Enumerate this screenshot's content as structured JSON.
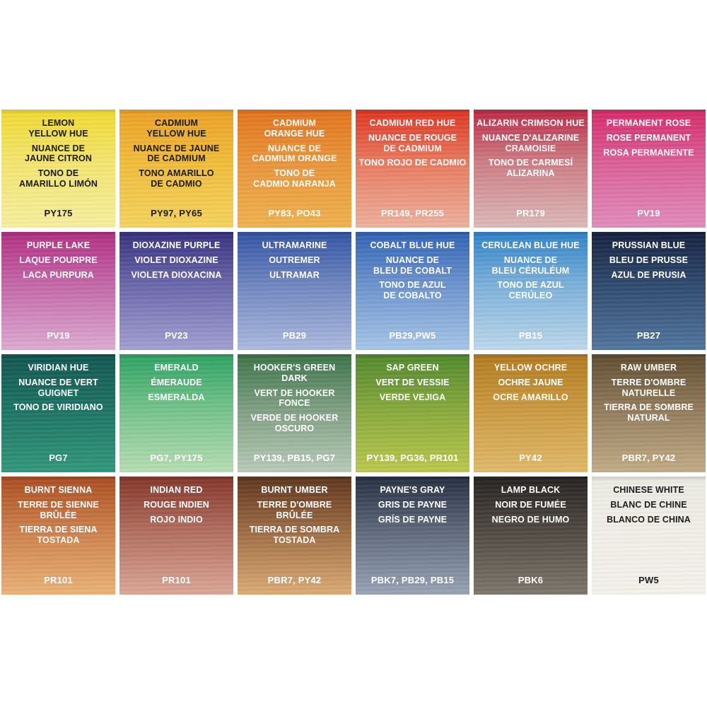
{
  "page": {
    "background": "#ffffff",
    "description": "Watercolour paint swatch chart, 4 rows x 6 columns, each swatch with English, French and Spanish names plus pigment codes"
  },
  "chart_data": {
    "type": "table",
    "title": "Watercolour swatch colour chart (24 colours)",
    "columns": 6,
    "rows": 4,
    "swatches": [
      {
        "name_en": "LEMON\nYELLOW HUE",
        "name_fr": "NUANCE DE\nJAUNE CITRON",
        "name_es": "TONO DE\nAMARILLO LIMÓN",
        "pigments": "PY175",
        "color_top": "#f0da30",
        "color_mid": "#f3e570",
        "color_bottom": "#f6ef9f",
        "text_color": "#1a1a1a"
      },
      {
        "name_en": "CADMIUM\nYELLOW HUE",
        "name_fr": "NUANCE DE JAUNE\nDE CADMIUM",
        "name_es": "TONO AMARILLO\nDE CADMIO",
        "pigments": "PY97, PY65",
        "color_top": "#eba125",
        "color_mid": "#f0bc3a",
        "color_bottom": "#f4d35e",
        "text_color": "#1a1a1a"
      },
      {
        "name_en": "CADMIUM\nORANGE HUE",
        "name_fr": "NUANCE DE\nCADMIUM ORANGE",
        "name_es": "TONO DE\nCADMIO NARANJA",
        "pigments": "PY83, PO43",
        "color_top": "#e2731d",
        "color_mid": "#e9953a",
        "color_bottom": "#efb24f",
        "text_color": "#ffffff"
      },
      {
        "name_en": "CADMIUM RED HUE",
        "name_fr": "NUANCE DE ROUGE\nDE CADMIUM",
        "name_es": "TONO ROJO DE CADMIO",
        "pigments": "PR149, PR255",
        "color_top": "#df3420",
        "color_mid": "#e87a5f",
        "color_bottom": "#edb19e",
        "text_color": "#ffffff"
      },
      {
        "name_en": "ALIZARIN CRIMSON HUE",
        "name_fr": "NUANCE D'ALIZARINE\nCRAMOISIE",
        "name_es": "TONO DE CARMESÍ\nALIZARINA",
        "pigments": "PR179",
        "color_top": "#bb2a44",
        "color_mid": "#cd7d85",
        "color_bottom": "#dcb9b8",
        "text_color": "#ffffff"
      },
      {
        "name_en": "PERMANENT ROSE",
        "name_fr": "ROSE PERMANENT",
        "name_es": "ROSA PERMANENTE",
        "pigments": "PV19",
        "color_top": "#d62a68",
        "color_mid": "#da5f97",
        "color_bottom": "#e18cbc",
        "text_color": "#ffffff"
      },
      {
        "name_en": "PURPLE LAKE",
        "name_fr": "LAQUE POURPRE",
        "name_es": "LACA PURPURA",
        "pigments": "PV19",
        "color_top": "#b12e82",
        "color_mid": "#c467a8",
        "color_bottom": "#dcabd2",
        "text_color": "#ffffff"
      },
      {
        "name_en": "DIOXAZINE PURPLE",
        "name_fr": "VIOLET DIOXAZINE",
        "name_es": "VIOLETA DIOXACINA",
        "pigments": "PV23",
        "color_top": "#36307f",
        "color_mid": "#6a67ab",
        "color_bottom": "#a19fd1",
        "text_color": "#ffffff"
      },
      {
        "name_en": "ULTRAMARINE",
        "name_fr": "OUTREMER",
        "name_es": "ULTRAMAR",
        "pigments": "PB29",
        "color_top": "#3153a4",
        "color_mid": "#6f86bf",
        "color_bottom": "#abb9dd",
        "text_color": "#ffffff"
      },
      {
        "name_en": "COBALT BLUE HUE",
        "name_fr": "NUANCE DE\nBLEU DE COBALT",
        "name_es": "TONO DE AZUL\nDE COBALTO",
        "pigments": "PB29,PW5",
        "color_top": "#2f62b5",
        "color_mid": "#6c93cd",
        "color_bottom": "#a5c5e8",
        "text_color": "#ffffff"
      },
      {
        "name_en": "CERULEAN BLUE HUE",
        "name_fr": "NUANCE DE\nBLEU CÉRULÉUM",
        "name_es": "TONO DE AZUL\nCERÚLEO",
        "pigments": "PB15",
        "color_top": "#2e82c8",
        "color_mid": "#7cb0da",
        "color_bottom": "#bcd8ea",
        "text_color": "#ffffff"
      },
      {
        "name_en": "PRUSSIAN BLUE",
        "name_fr": "BLEU DE PRUSSE",
        "name_es": "AZUL DE PRUSIA",
        "pigments": "PB27",
        "color_top": "#15203f",
        "color_mid": "#2f4a6e",
        "color_bottom": "#52759d",
        "text_color": "#ffffff"
      },
      {
        "name_en": "VIRIDIAN HUE",
        "name_fr": "NUANCE DE VERT\nGUIGNET",
        "name_es": "TONO DE VIRIDIANO",
        "pigments": "PG7",
        "color_top": "#115550",
        "color_mid": "#1d7263",
        "color_bottom": "#31977a",
        "text_color": "#ffffff"
      },
      {
        "name_en": "EMERALD",
        "name_fr": "ÉMERAUDE",
        "name_es": "ESMERALDA",
        "pigments": "PG7, PY175",
        "color_top": "#2da263",
        "color_mid": "#72c189",
        "color_bottom": "#b6ddb3",
        "text_color": "#ffffff"
      },
      {
        "name_en": "HOOKER'S GREEN\nDARK",
        "name_fr": "VERT DE HOOKER\nFONCE",
        "name_es": "VERDE DE HOOKER\nOSCURO",
        "pigments": "PY139, PB15, PG7",
        "color_top": "#3b7347",
        "color_mid": "#7c9d80",
        "color_bottom": "#b8cab8",
        "text_color": "#ffffff"
      },
      {
        "name_en": "SAP GREEN",
        "name_fr": "VERT DE VESSIE",
        "name_es": "VERDE VEJIGA",
        "pigments": "PY139, PG36, PR101",
        "color_top": "#50882c",
        "color_mid": "#85a73b",
        "color_bottom": "#bac84c",
        "text_color": "#ffffff"
      },
      {
        "name_en": "YELLOW OCHRE",
        "name_fr": "OCHRE JAUNE",
        "name_es": "OCRE AMARILLO",
        "pigments": "PY42",
        "color_top": "#b27a1e",
        "color_mid": "#c9983f",
        "color_bottom": "#e1b96a",
        "text_color": "#ffffff"
      },
      {
        "name_en": "RAW UMBER",
        "name_fr": "TERRE D'OMBRE\nNATURELLE",
        "name_es": "TIERRA DE SOMBRE\nNATURAL",
        "pigments": "PBr7, PY42",
        "color_top": "#5f4b2e",
        "color_mid": "#90795a",
        "color_bottom": "#c2ac86",
        "text_color": "#ffffff"
      },
      {
        "name_en": "BURNT SIENNA",
        "name_fr": "TERRE DE SIENNE\nBRÛLÉE",
        "name_es": "TIERRA DE SIENA\nTOSTADA",
        "pigments": "PR101",
        "color_top": "#aa4c20",
        "color_mid": "#cc7f4a",
        "color_bottom": "#eab277",
        "text_color": "#ffffff"
      },
      {
        "name_en": "INDIAN RED",
        "name_fr": "ROUGE INDIEN",
        "name_es": "ROJO INDIO",
        "pigments": "PR101",
        "color_top": "#833528",
        "color_mid": "#b06c5c",
        "color_bottom": "#dba695",
        "text_color": "#ffffff"
      },
      {
        "name_en": "BURNT UMBER",
        "name_fr": "TERRE D'OMBRE\nBRÛLÉE",
        "name_es": "TIERRA DE SOMBRA\nTOSTADA",
        "pigments": "PBr7, PY42",
        "color_top": "#5e351c",
        "color_mid": "#9c6a42",
        "color_bottom": "#dcab74",
        "text_color": "#ffffff"
      },
      {
        "name_en": "PAYNE'S GRAY",
        "name_fr": "GRIS DE PAYNE",
        "name_es": "GRÍS DE PAYNE",
        "pigments": "PBk7, PB29, PB15",
        "color_top": "#242e40",
        "color_mid": "#5c6779",
        "color_bottom": "#98a3b5",
        "text_color": "#ffffff"
      },
      {
        "name_en": "LAMP BLACK",
        "name_fr": "NOIR DE FUMÉE",
        "name_es": "NEGRO DE HUMO",
        "pigments": "PBk6",
        "color_top": "#242121",
        "color_mid": "#4e4840",
        "color_bottom": "#7e766b",
        "text_color": "#ffffff"
      },
      {
        "name_en": "CHINESE WHITE",
        "name_fr": "BLANC DE CHINE",
        "name_es": "BLANCO DE CHINA",
        "pigments": "PW5",
        "color_top": "#ecebe3",
        "color_mid": "#f0eee6",
        "color_bottom": "#f3f1ea",
        "text_color": "#1f1f1f"
      }
    ]
  }
}
